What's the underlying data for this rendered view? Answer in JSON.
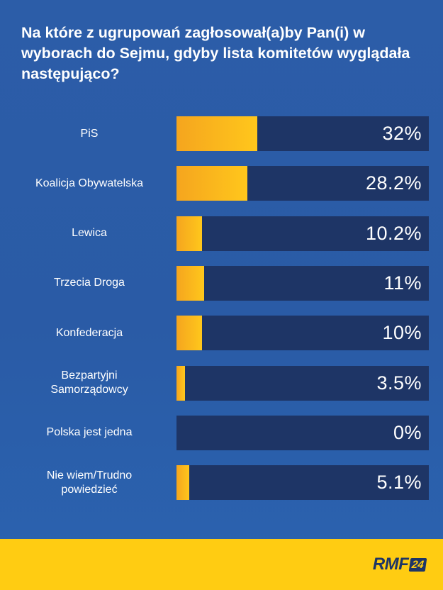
{
  "title": "Na które z ugrupowań zagłosował(a)by Pan(i) w wyborach do Sejmu, gdyby lista komitetów wyglądała następująco?",
  "colors": {
    "background": "#2c5da8",
    "track": "#1e3566",
    "bar": "#ffc71c",
    "footer": "#ffcc12"
  },
  "chart_data": {
    "type": "bar",
    "orientation": "horizontal",
    "categories": [
      "PiS",
      "Koalicja Obywatelska",
      "Lewica",
      "Trzecia Droga",
      "Konfederacja",
      "Bezpartyjni Samorządowcy",
      "Polska jest jedna",
      "Nie wiem/Trudno powiedzieć"
    ],
    "category_lines": [
      [
        "PiS"
      ],
      [
        "Koalicja Obywatelska"
      ],
      [
        "Lewica"
      ],
      [
        "Trzecia Droga"
      ],
      [
        "Konfederacja"
      ],
      [
        "Bezpartyjni",
        "Samorządowcy"
      ],
      [
        "Polska jest jedna"
      ],
      [
        "Nie wiem/Trudno",
        "powiedzieć"
      ]
    ],
    "values": [
      32,
      28.2,
      10.2,
      11,
      10,
      3.5,
      0,
      5.1
    ],
    "value_labels": [
      "32%",
      "28.2%",
      "10.2%",
      "11%",
      "10%",
      "3.5%",
      "0%",
      "5.1%"
    ],
    "xlim": [
      0,
      100
    ],
    "grid": false,
    "legend": "none"
  },
  "footer": {
    "logo_text": "RMF",
    "logo_badge": "24"
  }
}
